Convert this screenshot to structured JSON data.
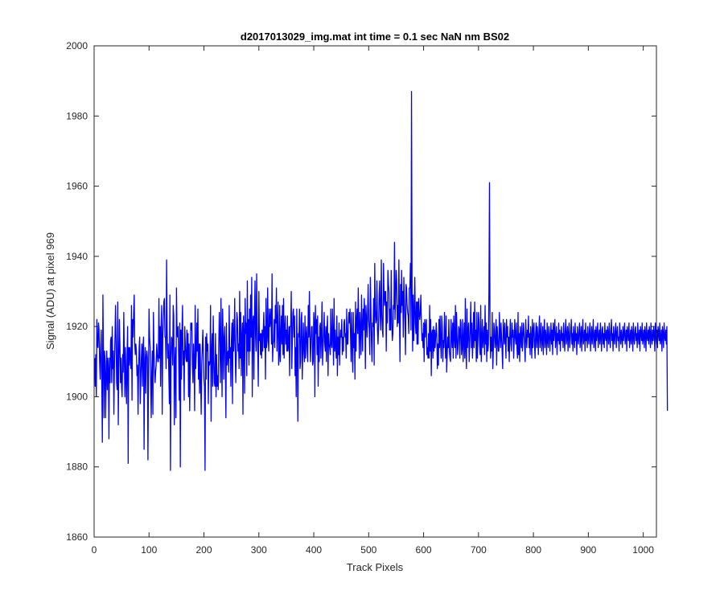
{
  "chart_data": {
    "type": "line",
    "title": "d2017013029_img.mat int time = 0.1 sec  NaN nm BS02",
    "xlabel": "Track Pixels",
    "ylabel": "Signal (ADU) at pixel 969",
    "xlim": [
      0,
      1024
    ],
    "ylim": [
      1860,
      2000
    ],
    "xticks": [
      0,
      100,
      200,
      300,
      400,
      500,
      600,
      700,
      800,
      900,
      1000
    ],
    "yticks": [
      1860,
      1880,
      1900,
      1920,
      1940,
      1960,
      1980,
      2000
    ],
    "grid": false,
    "line_color": "#0000ff",
    "series": [
      {
        "x_start": 1,
        "x_step": 1,
        "values": [
          1911,
          1903,
          1912,
          1900,
          1922,
          1915,
          1914,
          1921,
          1919,
          1910,
          1905,
          1914,
          1919,
          1903,
          1887,
          1929,
          1912,
          1894,
          1913,
          1910,
          1894,
          1906,
          1913,
          1902,
          1911,
          1908,
          1888,
          1911,
          1904,
          1916,
          1917,
          1904,
          1920,
          1908,
          1913,
          1895,
          1909,
          1917,
          1926,
          1916,
          1904,
          1902,
          1927,
          1892,
          1909,
          1922,
          1915,
          1904,
          1911,
          1903,
          1900,
          1912,
          1907,
          1924,
          1912,
          1900,
          1914,
          1905,
          1898,
          1912,
          1920,
          1881,
          1914,
          1909,
          1914,
          1911,
          1908,
          1926,
          1899,
          1922,
          1917,
          1924,
          1929,
          1915,
          1912,
          1915,
          1913,
          1906,
          1909,
          1895,
          1907,
          1914,
          1917,
          1898,
          1905,
          1911,
          1915,
          1903,
          1914,
          1917,
          1885,
          1909,
          1914,
          1901,
          1911,
          1913,
          1911,
          1882,
          1906,
          1925,
          1917,
          1914,
          1904,
          1894,
          1907,
          1913,
          1895,
          1924,
          1913,
          1908,
          1904,
          1907,
          1909,
          1915,
          1912,
          1910,
          1910,
          1928,
          1911,
          1920,
          1903,
          1920,
          1926,
          1895,
          1917,
          1922,
          1927,
          1928,
          1917,
          1917,
          1908,
          1939,
          1919,
          1911,
          1915,
          1907,
          1898,
          1929,
          1879,
          1911,
          1917,
          1916,
          1909,
          1926,
          1923,
          1892,
          1909,
          1914,
          1894,
          1931,
          1918,
          1917,
          1920,
          1911,
          1899,
          1921,
          1880,
          1919,
          1905,
          1919,
          1926,
          1909,
          1913,
          1899,
          1920,
          1915,
          1911,
          1910,
          1919,
          1910,
          1918,
          1900,
          1915,
          1896,
          1908,
          1921,
          1919,
          1921,
          1909,
          1904,
          1915,
          1910,
          1896,
          1926,
          1908,
          1912,
          1921,
          1913,
          1925,
          1905,
          1915,
          1901,
          1915,
          1905,
          1895,
          1909,
          1914,
          1919,
          1912,
          1905,
          1903,
          1879,
          1917,
          1905,
          1918,
          1913,
          1915,
          1898,
          1910,
          1909,
          1910,
          1926,
          1893,
          1913,
          1918,
          1903,
          1923,
          1911,
          1904,
          1903,
          1918,
          1900,
          1912,
          1903,
          1906,
          1902,
          1915,
          1924,
          1917,
          1904,
          1928,
          1913,
          1900,
          1925,
          1917,
          1905,
          1917,
          1920,
          1908,
          1894,
          1921,
          1909,
          1912,
          1913,
          1907,
          1926,
          1911,
          1914,
          1903,
          1916,
          1921,
          1898,
          1922,
          1913,
          1917,
          1928,
          1912,
          1904,
          1913,
          1924,
          1922,
          1913,
          1915,
          1908,
          1930,
          1911,
          1924,
          1906,
          1917,
          1921,
          1895,
          1923,
          1918,
          1901,
          1928,
          1918,
          1921,
          1906,
          1933,
          1913,
          1922,
          1909,
          1925,
          1913,
          1929,
          1917,
          1934,
          1900,
          1921,
          1923,
          1905,
          1923,
          1933,
          1917,
          1913,
          1935,
          1921,
          1913,
          1903,
          1930,
          1916,
          1918,
          1912,
          1918,
          1911,
          1919,
          1913,
          1919,
          1924,
          1914,
          1920,
          1905,
          1928,
          1914,
          1916,
          1931,
          1917,
          1913,
          1925,
          1920,
          1922,
          1925,
          1915,
          1935,
          1910,
          1915,
          1916,
          1922,
          1914,
          1926,
          1921,
          1931,
          1913,
          1920,
          1927,
          1909,
          1912,
          1926,
          1910,
          1917,
          1923,
          1915,
          1926,
          1912,
          1928,
          1911,
          1919,
          1923,
          1915,
          1919,
          1913,
          1923,
          1913,
          1915,
          1920,
          1906,
          1920,
          1920,
          1930,
          1908,
          1916,
          1924,
          1925,
          1917,
          1923,
          1906,
          1914,
          1900,
          1925,
          1913,
          1893,
          1918,
          1917,
          1925,
          1908,
          1910,
          1922,
          1924,
          1905,
          1913,
          1921,
          1913,
          1910,
          1923,
          1911,
          1917,
          1920,
          1913,
          1910,
          1926,
          1917,
          1930,
          1918,
          1910,
          1916,
          1920,
          1920,
          1909,
          1910,
          1924,
          1921,
          1900,
          1926,
          1918,
          1922,
          1912,
          1923,
          1903,
          1917,
          1910,
          1920,
          1921,
          1911,
          1918,
          1927,
          1909,
          1914,
          1918,
          1924,
          1915,
          1913,
          1920,
          1910,
          1919,
          1923,
          1906,
          1918,
          1915,
          1914,
          1912,
          1925,
          1915,
          1914,
          1925,
          1917,
          1909,
          1928,
          1913,
          1919,
          1914,
          1911,
          1923,
          1906,
          1917,
          1912,
          1921,
          1909,
          1916,
          1919,
          1917,
          1922,
          1912,
          1917,
          1913,
          1921,
          1922,
          1917,
          1918,
          1911,
          1925,
          1915,
          1915,
          1921,
          1924,
          1921,
          1925,
          1917,
          1910,
          1924,
          1915,
          1907,
          1924,
          1914,
          1918,
          1905,
          1927,
          1913,
          1922,
          1925,
          1918,
          1931,
          1920,
          1911,
          1924,
          1919,
          1912,
          1929,
          1920,
          1913,
          1925,
          1919,
          1928,
          1923,
          1908,
          1926,
          1922,
          1917,
          1924,
          1932,
          1922,
          1919,
          1912,
          1934,
          1926,
          1916,
          1910,
          1921,
          1920,
          1928,
          1909,
          1938,
          1925,
          1921,
          1922,
          1933,
          1919,
          1915,
          1920,
          1929,
          1933,
          1923,
          1919,
          1939,
          1924,
          1919,
          1917,
          1938,
          1929,
          1926,
          1930,
          1930,
          1913,
          1927,
          1921,
          1936,
          1932,
          1930,
          1919,
          1925,
          1919,
          1936,
          1922,
          1916,
          1918,
          1926,
          1925,
          1944,
          1922,
          1929,
          1936,
          1933,
          1920,
          1926,
          1921,
          1939,
          1923,
          1910,
          1932,
          1924,
          1936,
          1926,
          1930,
          1917,
          1934,
          1927,
          1921,
          1912,
          1932,
          1931,
          1926,
          1924,
          1923,
          1918,
          1931,
          1931,
          1938,
          1919,
          1987,
          1930,
          1913,
          1929,
          1916,
          1924,
          1934,
          1921,
          1918,
          1927,
          1915,
          1927,
          1915,
          1928,
          1924,
          1922,
          1924,
          1929,
          1921,
          1916,
          1918,
          1914,
          1921,
          1910,
          1922,
          1917,
          1920,
          1922,
          1912,
          1914,
          1911,
          1918,
          1911,
          1926,
          1913,
          1922,
          1906,
          1918,
          1919,
          1911,
          1920,
          1913,
          1919,
          1914,
          1917,
          1921,
          1918,
          1908,
          1915,
          1909,
          1922,
          1914,
          1923,
          1915,
          1911,
          1923,
          1920,
          1910,
          1916,
          1914,
          1924,
          1917,
          1911,
          1923,
          1907,
          1912,
          1917,
          1914,
          1922,
          1913,
          1911,
          1910,
          1922,
          1917,
          1914,
          1921,
          1911,
          1923,
          1917,
          1914,
          1926,
          1911,
          1924,
          1917,
          1912,
          1915,
          1920,
          1919,
          1911,
          1922,
          1921,
          1912,
          1914,
          1922,
          1910,
          1916,
          1921,
          1911,
          1928,
          1914,
          1908,
          1925,
          1914,
          1919,
          1921,
          1910,
          1915,
          1920,
          1927,
          1914,
          1921,
          1911,
          1916,
          1924,
          1914,
          1927,
          1916,
          1919,
          1910,
          1924,
          1911,
          1916,
          1924,
          1921,
          1915,
          1912,
          1926,
          1910,
          1916,
          1922,
          1914,
          1917,
          1920,
          1912,
          1926,
          1915,
          1921,
          1910,
          1919,
          1913,
          1915,
          1930,
          1961,
          1918,
          1911,
          1917,
          1913,
          1924,
          1908,
          1913,
          1921,
          1919,
          1914,
          1916,
          1922,
          1909,
          1920,
          1917,
          1913,
          1913,
          1924,
          1918,
          1914,
          1921,
          1917,
          1913,
          1908,
          1922,
          1919,
          1915,
          1921,
          1916,
          1911,
          1922,
          1917,
          1920,
          1913,
          1917,
          1910,
          1918,
          1922,
          1915,
          1913,
          1921,
          1917,
          1919,
          1911,
          1916,
          1922,
          1917,
          1915,
          1921,
          1914,
          1911,
          1924,
          1912,
          1918,
          1910,
          1920,
          1917,
          1914,
          1921,
          1913,
          1917,
          1921,
          1918,
          1914,
          1910,
          1922,
          1917,
          1914,
          1919,
          1917,
          1923,
          1914,
          1918,
          1912,
          1920,
          1917,
          1911,
          1922,
          1914,
          1919,
          1921,
          1915,
          1911,
          1918,
          1921,
          1914,
          1920,
          1917,
          1912,
          1919,
          1923,
          1914,
          1917,
          1921,
          1913,
          1916,
          1920,
          1912,
          1918,
          1922,
          1914,
          1919,
          1917,
          1912,
          1921,
          1916,
          1914,
          1920,
          1918,
          1913,
          1917,
          1921,
          1915,
          1919,
          1912,
          1921,
          1916,
          1919,
          1922,
          1914,
          1917,
          1920,
          1912,
          1918,
          1916,
          1921,
          1915,
          1919,
          1913,
          1917,
          1920,
          1916,
          1918,
          1914,
          1921,
          1917,
          1913,
          1919,
          1922,
          1915,
          1917,
          1920,
          1913,
          1918,
          1921,
          1914,
          1916,
          1919,
          1922,
          1915,
          1918,
          1913,
          1920,
          1917,
          1914,
          1921,
          1916,
          1918,
          1912,
          1920,
          1917,
          1915,
          1919,
          1921,
          1914,
          1917,
          1920,
          1913,
          1918,
          1922,
          1915,
          1917,
          1919,
          1913,
          1921,
          1916,
          1918,
          1914,
          1920,
          1917,
          1915,
          1919,
          1921,
          1913,
          1917,
          1920,
          1915,
          1918,
          1922,
          1914,
          1917,
          1919,
          1913,
          1920,
          1916,
          1918,
          1921,
          1914,
          1917,
          1919,
          1915,
          1921,
          1917,
          1913,
          1919,
          1920,
          1915,
          1918,
          1914,
          1921,
          1917,
          1916,
          1919,
          1913,
          1920,
          1918,
          1915,
          1921,
          1917,
          1914,
          1919,
          1922,
          1916,
          1918,
          1913,
          1920,
          1917,
          1915,
          1919,
          1921,
          1914,
          1918,
          1920,
          1916,
          1917,
          1913,
          1921,
          1918,
          1915,
          1919,
          1917,
          1914,
          1920,
          1916,
          1918,
          1921,
          1915,
          1917,
          1919,
          1913,
          1920,
          1918,
          1916,
          1921,
          1914,
          1917,
          1919,
          1915,
          1920,
          1918,
          1913,
          1921,
          1917,
          1915,
          1919,
          1920,
          1916,
          1918,
          1914,
          1921,
          1917,
          1915,
          1919,
          1913,
          1920,
          1918,
          1916,
          1921,
          1915,
          1917,
          1919,
          1914,
          1920,
          1918,
          1913,
          1921,
          1917,
          1916,
          1919,
          1915,
          1920,
          1918,
          1914,
          1921,
          1917,
          1915,
          1919,
          1916,
          1920,
          1918,
          1913,
          1921,
          1917,
          1915,
          1919,
          1914,
          1920,
          1918,
          1916,
          1921,
          1915,
          1917,
          1919,
          1913,
          1920,
          1918,
          1914,
          1921,
          1917,
          1916,
          1919,
          1915,
          1920,
          1896
        ]
      }
    ]
  }
}
